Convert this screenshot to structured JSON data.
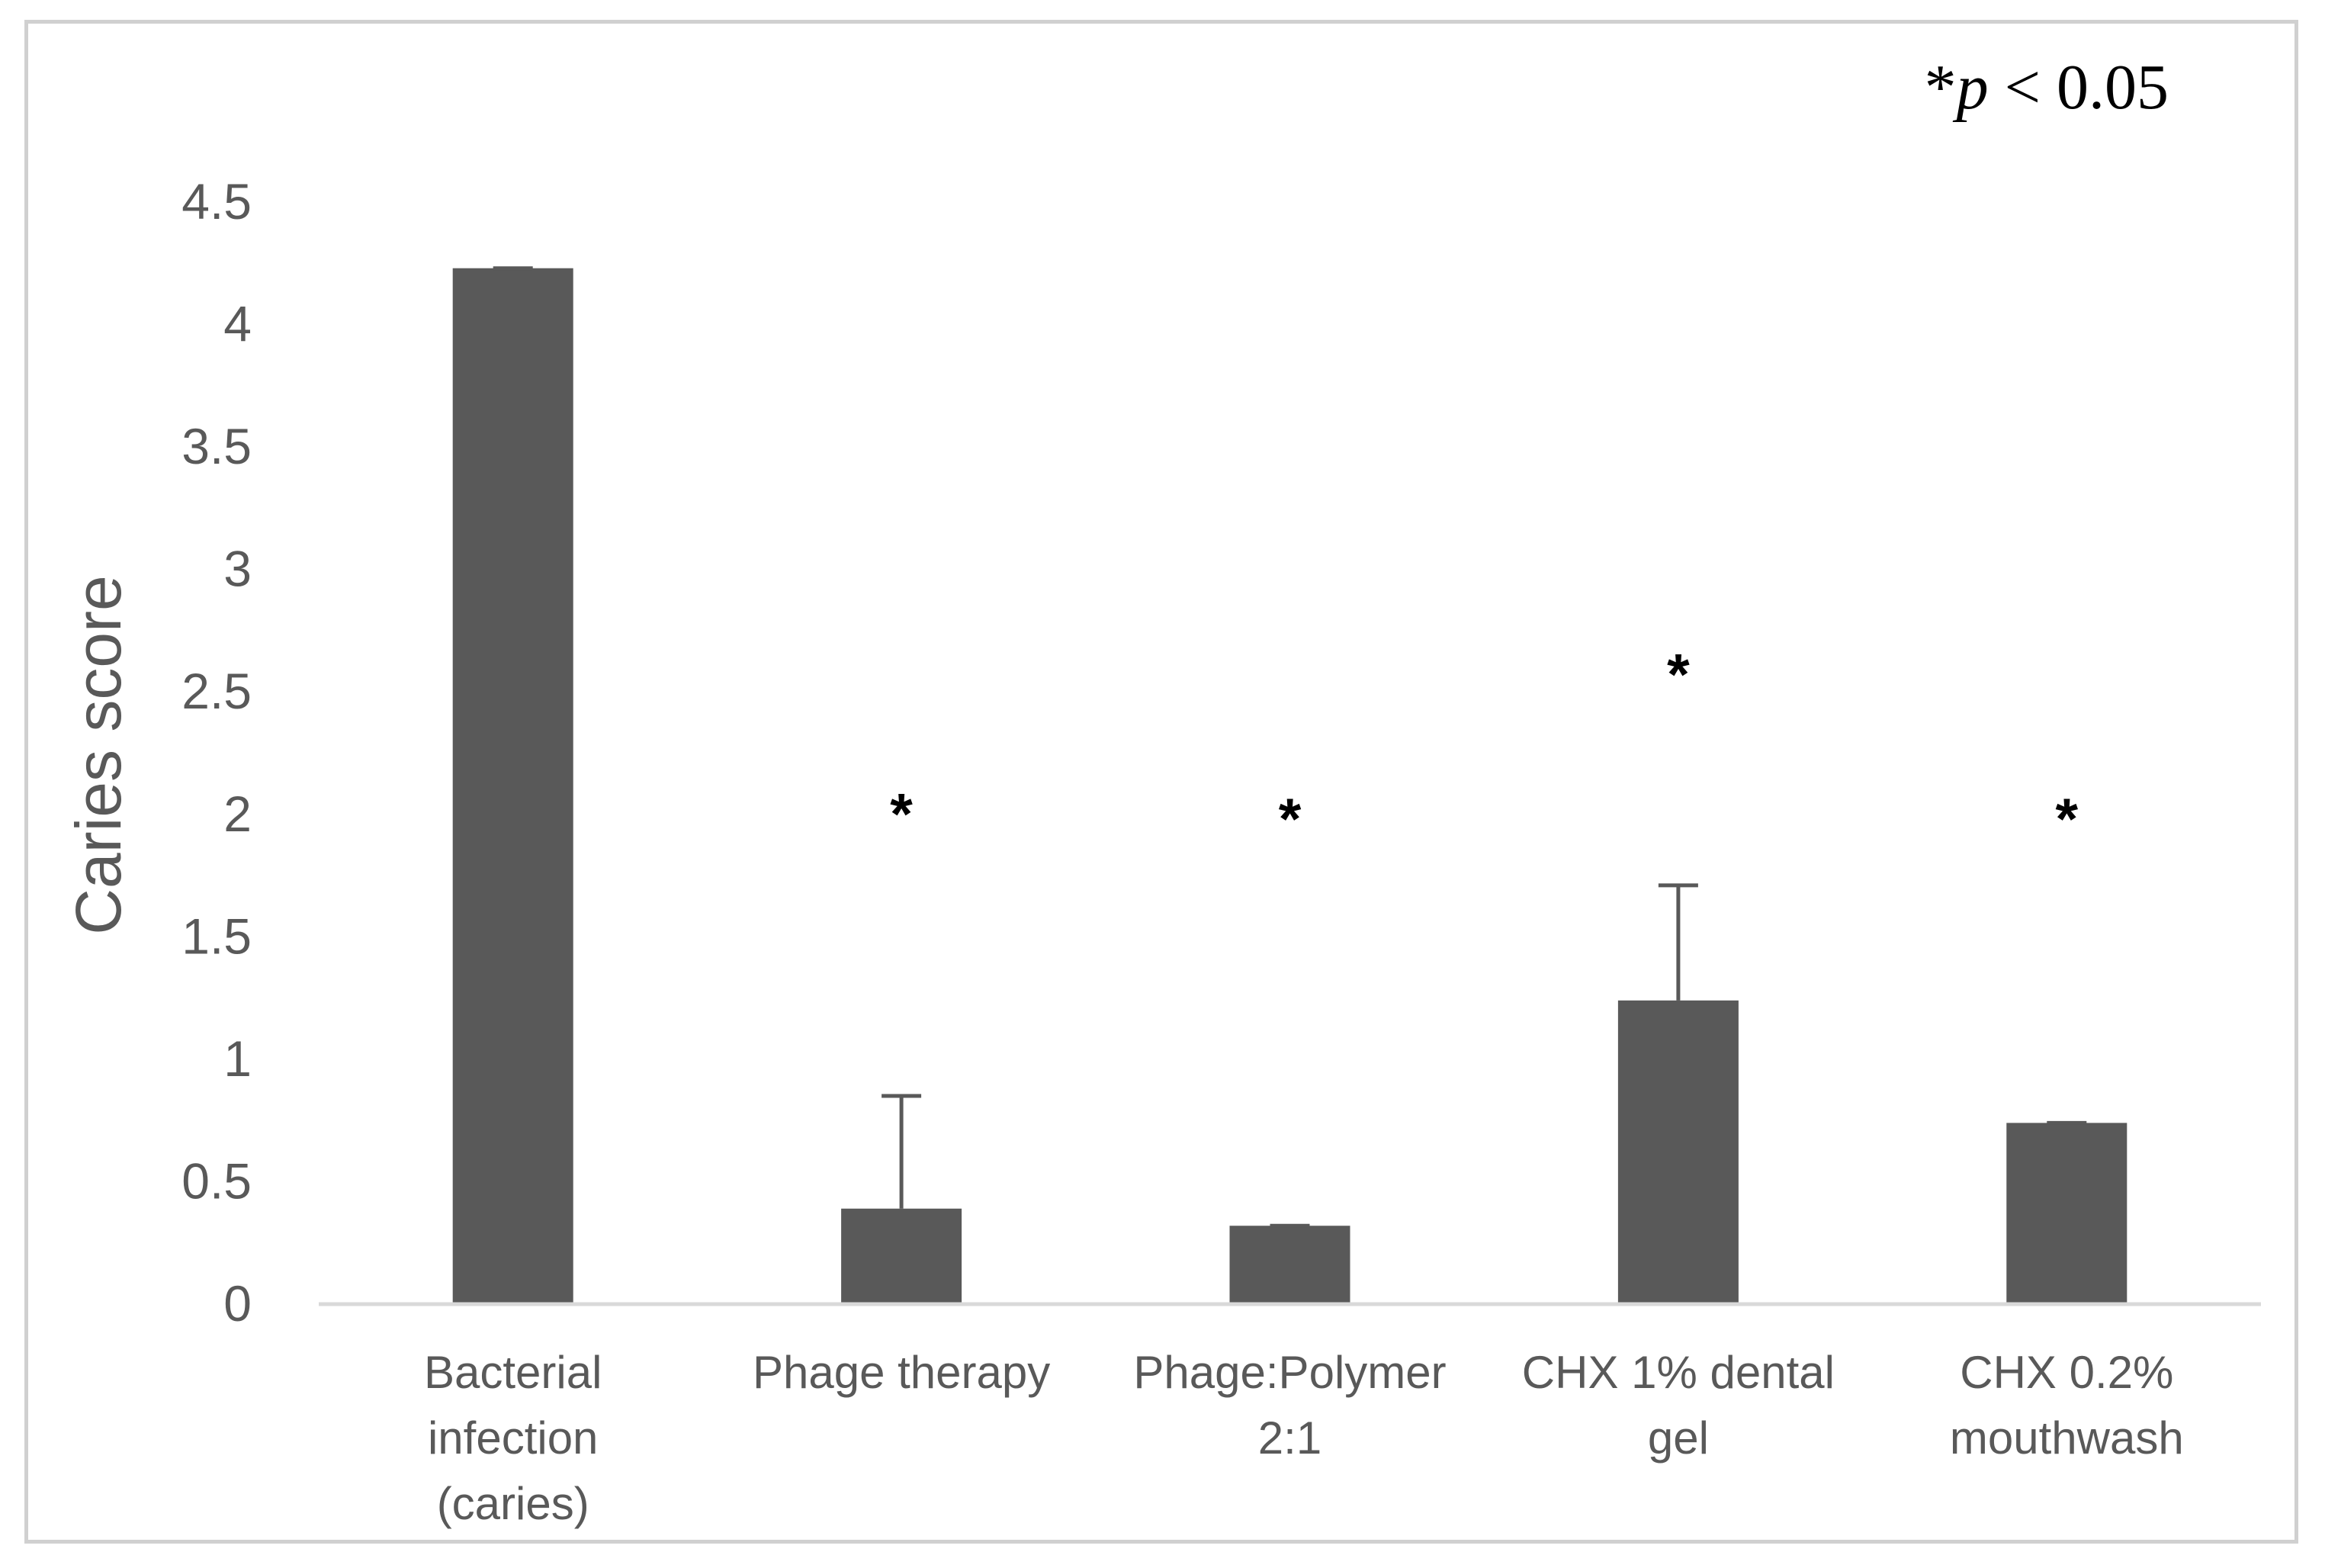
{
  "chart_data": {
    "type": "bar",
    "title": "",
    "xlabel": "",
    "ylabel": "Caries score",
    "ylim": [
      0,
      4.5
    ],
    "yticks": [
      "0",
      "0.5",
      "1",
      "1.5",
      "2",
      "2.5",
      "3",
      "3.5",
      "4",
      "4.5"
    ],
    "grid": false,
    "categories": [
      [
        "Bacterial",
        "infection",
        "(caries)"
      ],
      [
        "Phage therapy"
      ],
      [
        "Phage:Polymer",
        "2:1"
      ],
      [
        "CHX  1% dental",
        "gel"
      ],
      [
        "CHX 0.2%",
        "mouthwash"
      ]
    ],
    "values": [
      4.23,
      0.39,
      0.32,
      1.24,
      0.74
    ],
    "errors": [
      0.0,
      0.46,
      0.0,
      0.47,
      0.0
    ],
    "significance": [
      "",
      "*",
      "*",
      "*",
      "*"
    ],
    "significance_y": [
      0,
      2.05,
      2.03,
      2.62,
      2.03
    ],
    "annotation": {
      "prefix": "*",
      "italic": "p",
      "rest": " < 0.05"
    },
    "bar_color": "#595959",
    "axis_color": "#d9d9d9",
    "text_color": "#595959"
  }
}
